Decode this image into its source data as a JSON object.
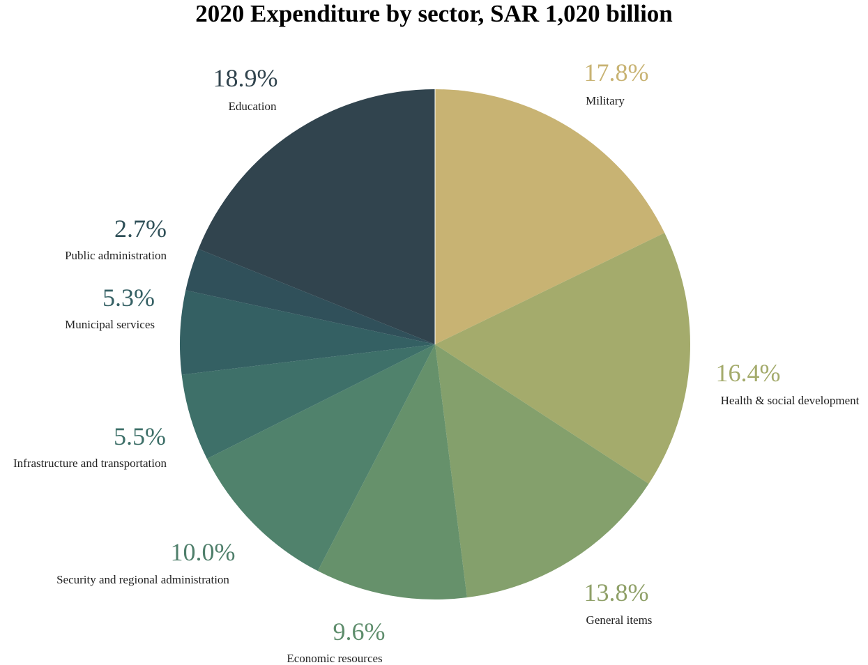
{
  "chart_data": {
    "type": "pie",
    "title": "2020 Expenditure by sector, SAR 1,020 billion",
    "slices": [
      {
        "label": "Military",
        "value": 17.8,
        "value_label": "17.8%",
        "color": "#c8b373",
        "label_color": "#c8b373"
      },
      {
        "label": "Health & social development",
        "value": 16.4,
        "value_label": "16.4%",
        "color": "#a4ab6c",
        "label_color": "#a4ab6c"
      },
      {
        "label": "General items",
        "value": 13.8,
        "value_label": "13.8%",
        "color": "#84a06c",
        "label_color": "#8fa068"
      },
      {
        "label": "Economic resources",
        "value": 9.6,
        "value_label": "9.6%",
        "color": "#66916b",
        "label_color": "#5e8d6c"
      },
      {
        "label": "Security and regional administration",
        "value": 10.0,
        "value_label": "10.0%",
        "color": "#50826c",
        "label_color": "#4f7f6b"
      },
      {
        "label": "Infrastructure and transportation",
        "value": 5.5,
        "value_label": "5.5%",
        "color": "#3e7069",
        "label_color": "#3e7069"
      },
      {
        "label": "Municipal services",
        "value": 5.3,
        "value_label": "5.3%",
        "color": "#346063",
        "label_color": "#356064"
      },
      {
        "label": "Public administration",
        "value": 2.7,
        "value_label": "2.7%",
        "color": "#30505a",
        "label_color": "#2f5058"
      },
      {
        "label": "Education",
        "value": 18.9,
        "value_label": "18.9%",
        "color": "#31444e",
        "label_color": "#31444e"
      }
    ]
  }
}
